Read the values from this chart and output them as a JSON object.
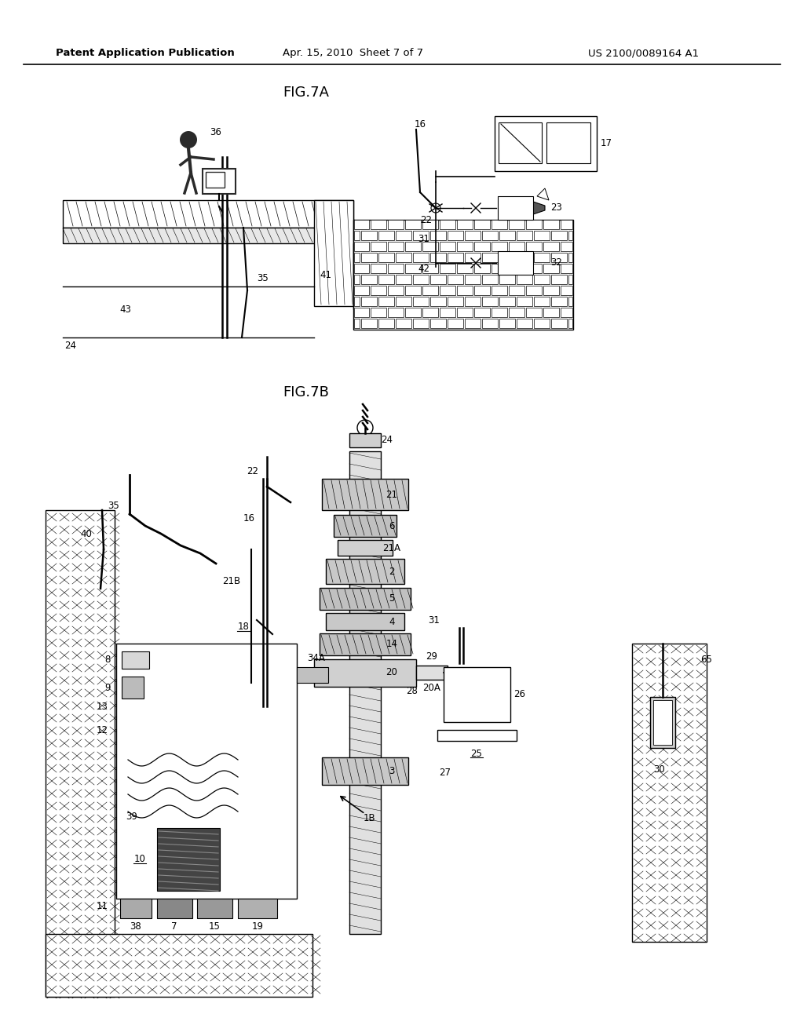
{
  "background_color": "#ffffff",
  "header_left": "Patent Application Publication",
  "header_center": "Apr. 15, 2010  Sheet 7 of 7",
  "header_right": "US 2100/0089164 A1",
  "fig7a_title": "FIG.7A",
  "fig7b_title": "FIG.7B",
  "line_color": "#000000",
  "label_fontsize": 8.5,
  "header_fontsize": 9.5,
  "title_fontsize": 13
}
